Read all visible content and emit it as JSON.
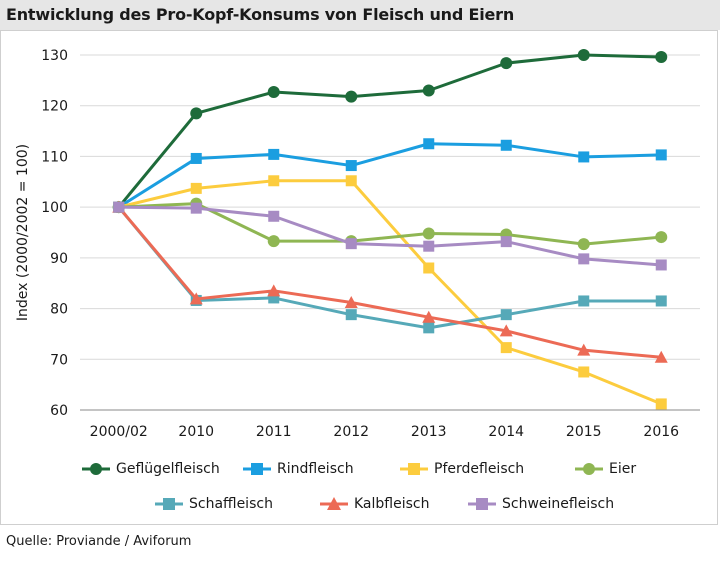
{
  "title": "Entwicklung des Pro-Kopf-Konsums von Fleisch und Eiern",
  "source": "Quelle:  Proviande / Aviforum",
  "chart_data": {
    "type": "line",
    "title": "Entwicklung des Pro-Kopf-Konsums von Fleisch und Eiern",
    "xlabel": "",
    "ylabel": "Index (2000/2002 = 100)",
    "categories": [
      "2000/02",
      "2010",
      "2011",
      "2012",
      "2013",
      "2014",
      "2015",
      "2016"
    ],
    "ylim": [
      60,
      130
    ],
    "yticks": [
      60,
      70,
      80,
      90,
      100,
      110,
      120,
      130
    ],
    "grid": true,
    "legend_position": "bottom",
    "series": [
      {
        "name": "Geflügelfleisch",
        "color": "#1e6b3a",
        "marker": "circle",
        "values": [
          100,
          118.5,
          122.7,
          121.8,
          123.0,
          128.4,
          130.0,
          129.6
        ]
      },
      {
        "name": "Rindfleisch",
        "color": "#1b9ee0",
        "marker": "square",
        "values": [
          100,
          109.6,
          110.4,
          108.2,
          112.5,
          112.2,
          109.9,
          110.3
        ]
      },
      {
        "name": "Pferdefleisch",
        "color": "#fccc3e",
        "marker": "square",
        "values": [
          100,
          103.7,
          105.2,
          105.2,
          88.0,
          72.3,
          67.5,
          61.2
        ]
      },
      {
        "name": "Eier",
        "color": "#8fb653",
        "marker": "circle",
        "values": [
          100,
          100.7,
          93.3,
          93.3,
          94.8,
          94.6,
          92.7,
          94.1
        ]
      },
      {
        "name": "Schaffleisch",
        "color": "#56a9b8",
        "marker": "square",
        "values": [
          100,
          81.6,
          82.1,
          78.8,
          76.2,
          78.8,
          81.5,
          81.5
        ]
      },
      {
        "name": "Kalbfleisch",
        "color": "#ec6a55",
        "marker": "triangle",
        "values": [
          100,
          81.9,
          83.5,
          81.2,
          78.3,
          75.6,
          71.8,
          70.4
        ]
      },
      {
        "name": "Schweinefleisch",
        "color": "#a78bc3",
        "marker": "square",
        "values": [
          100,
          99.8,
          98.2,
          92.8,
          92.3,
          93.2,
          89.8,
          88.6
        ]
      }
    ]
  }
}
